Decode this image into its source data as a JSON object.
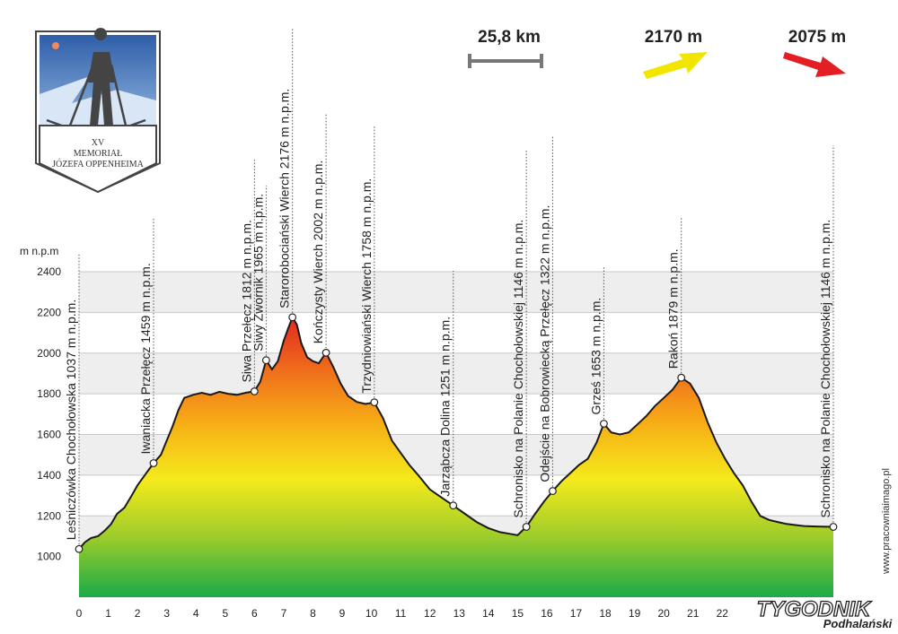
{
  "logo": {
    "line1": "XV",
    "line2": "MEMORIAŁ",
    "line3": "JÓZEFA OPPENHEIMA"
  },
  "stats": {
    "distance": "25,8 km",
    "ascent": "2170 m",
    "descent": "2075 m",
    "ascent_color": "#f2e600",
    "descent_color": "#e31e24"
  },
  "credits": {
    "site": "www.pracowniaimago.pl",
    "brand_main": "TYGODNIK",
    "brand_sub": "Podhalański"
  },
  "chart_data": {
    "type": "area",
    "ylabel": "m n.p.m",
    "ylim": [
      800,
      2400
    ],
    "xlim": [
      0,
      25.8
    ],
    "yticks": [
      1000,
      1200,
      1400,
      1600,
      1800,
      2000,
      2200,
      2400
    ],
    "xticks": [
      0,
      1,
      2,
      3,
      4,
      5,
      6,
      7,
      8,
      9,
      10,
      11,
      12,
      13,
      14,
      15,
      16,
      17,
      18,
      19,
      20,
      21,
      22
    ],
    "grid": true,
    "x": [
      0,
      0.2,
      0.4,
      0.65,
      0.9,
      1.1,
      1.3,
      1.55,
      1.8,
      2.0,
      2.3,
      2.55,
      2.8,
      3.0,
      3.2,
      3.4,
      3.6,
      3.9,
      4.2,
      4.5,
      4.8,
      5.1,
      5.4,
      5.7,
      6.0,
      6.2,
      6.4,
      6.6,
      6.8,
      7.0,
      7.15,
      7.3,
      7.45,
      7.6,
      7.8,
      8.0,
      8.2,
      8.45,
      8.7,
      8.95,
      9.2,
      9.5,
      9.8,
      10.1,
      10.4,
      10.7,
      11.0,
      11.3,
      11.6,
      12.0,
      12.4,
      12.8,
      13.2,
      13.6,
      14.0,
      14.4,
      14.8,
      15.0,
      15.3,
      15.6,
      15.9,
      16.2,
      16.5,
      16.8,
      17.1,
      17.4,
      17.7,
      17.95,
      18.2,
      18.5,
      18.8,
      19.1,
      19.4,
      19.7,
      20.0,
      20.3,
      20.6,
      20.9,
      21.2,
      21.5,
      21.8,
      22.1,
      22.4,
      22.7,
      23.0,
      23.3,
      23.6,
      23.9,
      24.2,
      24.5,
      24.8,
      25.1,
      25.4,
      25.8
    ],
    "y": [
      1037,
      1070,
      1090,
      1100,
      1130,
      1160,
      1210,
      1240,
      1300,
      1350,
      1410,
      1459,
      1500,
      1570,
      1640,
      1720,
      1780,
      1795,
      1805,
      1795,
      1810,
      1800,
      1795,
      1805,
      1812,
      1860,
      1965,
      1920,
      1960,
      2060,
      2120,
      2176,
      2140,
      2050,
      1980,
      1960,
      1950,
      2002,
      1930,
      1850,
      1790,
      1760,
      1750,
      1758,
      1680,
      1570,
      1510,
      1450,
      1400,
      1330,
      1290,
      1251,
      1210,
      1170,
      1140,
      1120,
      1110,
      1105,
      1146,
      1210,
      1270,
      1322,
      1370,
      1410,
      1450,
      1480,
      1560,
      1653,
      1610,
      1600,
      1610,
      1650,
      1690,
      1740,
      1780,
      1820,
      1879,
      1850,
      1780,
      1660,
      1560,
      1480,
      1410,
      1350,
      1270,
      1200,
      1180,
      1170,
      1160,
      1155,
      1150,
      1148,
      1147,
      1146
    ],
    "waypoints": [
      {
        "name": "Leśniczówka Chochołowska 1037 m n.p.m.",
        "x": 0,
        "elev": 1037,
        "top": 270
      },
      {
        "name": "Iwaniacka Przełęcz 1459 m n.p.m.",
        "x": 2.55,
        "elev": 1459,
        "top": 230
      },
      {
        "name": "Siwa Przełęcz 1812 m n.p.m.",
        "x": 6.0,
        "elev": 1812,
        "top": 165
      },
      {
        "name": "Siwy Zwornik 1965 m n.p.m.",
        "x": 6.4,
        "elev": 1965,
        "top": 195
      },
      {
        "name": "Starorobociański Wierch 2176 m n.p.m.",
        "x": 7.3,
        "elev": 2176,
        "top": 20
      },
      {
        "name": "Kończysty Wierch 2002 m n.p.m.",
        "x": 8.45,
        "elev": 2002,
        "top": 115
      },
      {
        "name": "Trzydniowiański Wierch 1758 m n.p.m.",
        "x": 10.1,
        "elev": 1758,
        "top": 128
      },
      {
        "name": "Jarząbcza Dolina 1251 m n.p.m.",
        "x": 12.8,
        "elev": 1251,
        "top": 290
      },
      {
        "name": "Schronisko na Polanie Chochołowskiej 1146 m n.p.m.",
        "x": 15.3,
        "elev": 1146,
        "top": 155
      },
      {
        "name": "Odejście na Bobrowiecką Przełęcz 1322 m n.p.m.",
        "x": 16.2,
        "elev": 1322,
        "top": 140
      },
      {
        "name": "Grześ 1653 m n.p.m.",
        "x": 17.95,
        "elev": 1653,
        "top": 285
      },
      {
        "name": "Rakoń 1879 m n.p.m.",
        "x": 20.6,
        "elev": 1879,
        "top": 230
      },
      {
        "name": "Schronisko na Polanie Chochołowskiej 1146 m n.p.m.",
        "x": 25.8,
        "elev": 1146,
        "top": 150
      }
    ]
  }
}
